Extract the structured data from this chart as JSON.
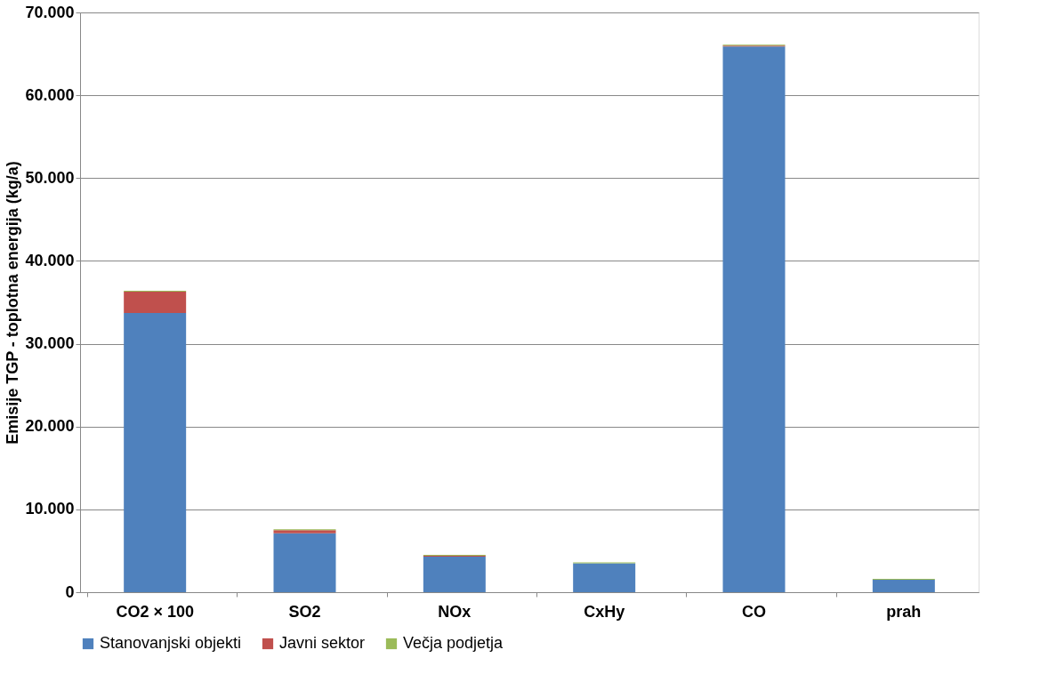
{
  "chart_data": {
    "type": "bar",
    "stacked": true,
    "ylabel": "Emisije TGP - toplotna energija (kg/a)",
    "categories": [
      "CO2 × 100",
      "SO2",
      "NOx",
      "CxHy",
      "CO",
      "prah"
    ],
    "series": [
      {
        "name": "Stanovanjski objekti",
        "color": "#4f81bd",
        "values": [
          33700,
          7100,
          4300,
          3500,
          65900,
          1500
        ]
      },
      {
        "name": "Javni sektor",
        "color": "#c0504d",
        "values": [
          2600,
          400,
          100,
          0,
          100,
          0
        ]
      },
      {
        "name": "Večja podjetja",
        "color": "#9bbb59",
        "values": [
          100,
          100,
          100,
          100,
          100,
          100
        ]
      }
    ],
    "ylim": [
      0,
      70000
    ],
    "yticks": [
      {
        "value": 0,
        "label": "0"
      },
      {
        "value": 10000,
        "label": "10.000"
      },
      {
        "value": 20000,
        "label": "20.000"
      },
      {
        "value": 30000,
        "label": "30.000"
      },
      {
        "value": 40000,
        "label": "40.000"
      },
      {
        "value": 50000,
        "label": "50.000"
      },
      {
        "value": 60000,
        "label": "60.000"
      },
      {
        "value": 70000,
        "label": "70.000"
      }
    ],
    "grid": "y",
    "legend": "bottom"
  }
}
